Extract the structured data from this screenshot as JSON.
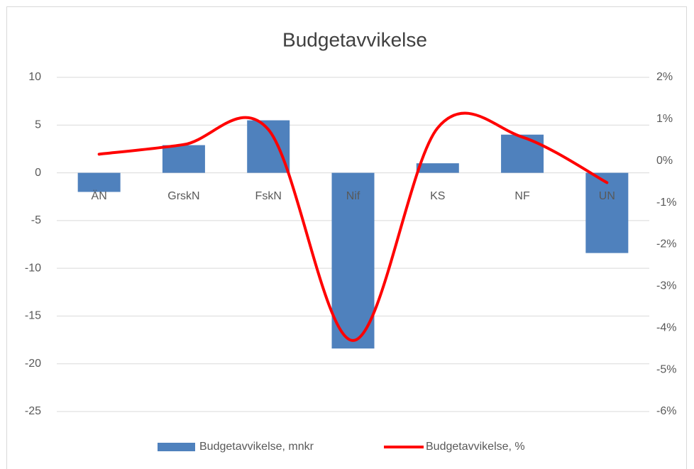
{
  "chart_data": {
    "type": "bar_line",
    "title": "Budgetavvikelse",
    "categories": [
      "ÄN",
      "GrskN",
      "FskN",
      "Nif",
      "KS",
      "NF",
      "UN"
    ],
    "series": [
      {
        "name": "Budgetavvikelse, mnkr",
        "type": "bar",
        "color": "#4f81bd",
        "values": [
          -2.0,
          2.9,
          5.5,
          -18.4,
          1.0,
          4.0,
          -8.4
        ]
      },
      {
        "name": "Budgetavvikelse, %",
        "type": "line",
        "axis": "y2",
        "color": "#ff0000",
        "smooth": true,
        "values": [
          0.16,
          0.39,
          0.75,
          -4.3,
          0.79,
          0.57,
          -0.52
        ]
      }
    ],
    "ylim": [
      -25,
      10
    ],
    "yticks": [
      10,
      5,
      0,
      -5,
      -10,
      -15,
      -20,
      -25
    ],
    "y2lim": [
      -6,
      2
    ],
    "y2ticks": [
      {
        "value": 2,
        "label": "2%"
      },
      {
        "value": 1,
        "label": "1%"
      },
      {
        "value": 0,
        "label": "0%"
      },
      {
        "value": -1,
        "label": "-1%"
      },
      {
        "value": -2,
        "label": "-2%"
      },
      {
        "value": -3,
        "label": "-3%"
      },
      {
        "value": -4,
        "label": "-4%"
      },
      {
        "value": -5,
        "label": "-5%"
      },
      {
        "value": -6,
        "label": "-6%"
      }
    ],
    "grid": true,
    "legend": "bottom"
  }
}
